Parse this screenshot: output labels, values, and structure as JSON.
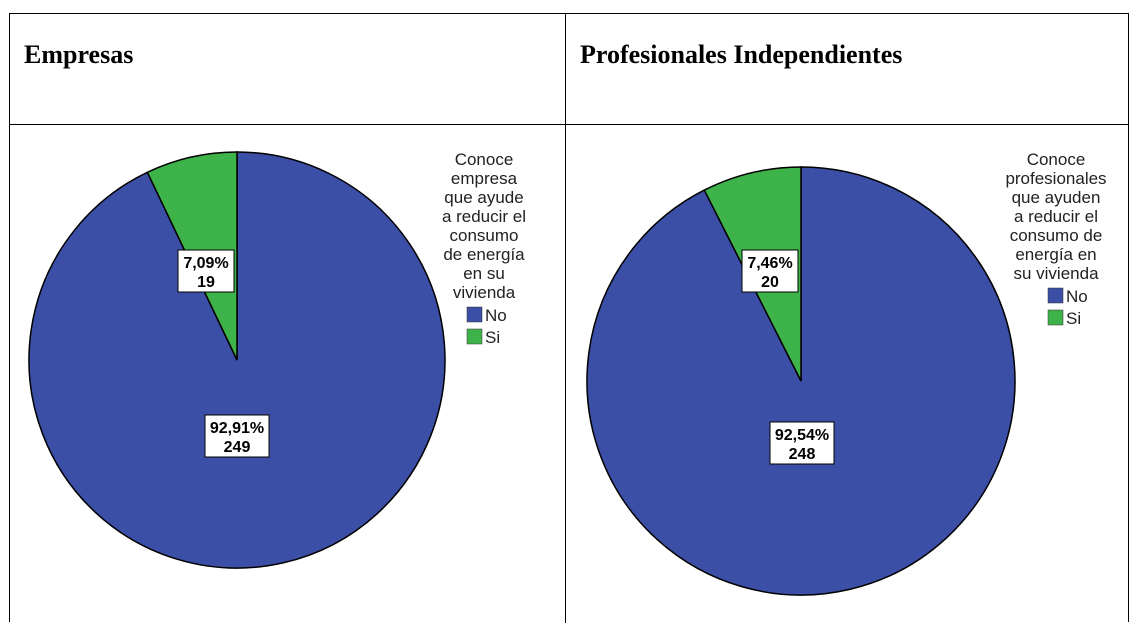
{
  "table": {
    "col1_header": "Empresas",
    "col2_header": "Profesionales Independientes"
  },
  "colors": {
    "No": "#3c4fa6",
    "Si": "#3eb34a"
  },
  "chart_data": [
    {
      "type": "pie",
      "title": "",
      "legend_title_lines": [
        "Conoce",
        "empresa",
        "que ayude",
        "a reducir el",
        "consumo",
        "de energía",
        "en su",
        "vivienda"
      ],
      "legend_position": "right",
      "slices": [
        {
          "name": "No",
          "value": 249,
          "percent_label": "92,91%",
          "count_label": "249"
        },
        {
          "name": "Si",
          "value": 19,
          "percent_label": "7,09%",
          "count_label": "19"
        }
      ]
    },
    {
      "type": "pie",
      "title": "",
      "legend_title_lines": [
        "Conoce",
        "profesionales",
        "que ayuden",
        "a reducir el",
        "consumo de",
        "energía en",
        "su vivienda"
      ],
      "legend_position": "right",
      "slices": [
        {
          "name": "No",
          "value": 248,
          "percent_label": "92,54%",
          "count_label": "248"
        },
        {
          "name": "Si",
          "value": 20,
          "percent_label": "7,46%",
          "count_label": "20"
        }
      ]
    }
  ]
}
